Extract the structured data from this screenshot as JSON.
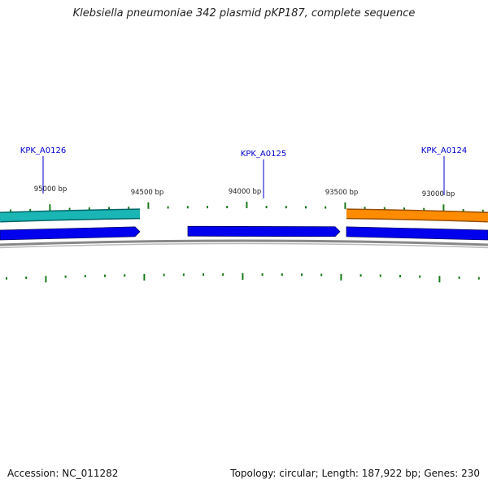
{
  "title": "Klebsiella pneumoniae 342 plasmid pKP187, complete sequence",
  "footer": {
    "accession": "Accession: NC_011282",
    "summary": "Topology: circular; Length: 187,922 bp; Genes: 230"
  },
  "genes": [
    {
      "label": "KPK_A0126",
      "color": "#1ab5b5",
      "border": "#006666",
      "track": "upper",
      "strand": "-"
    },
    {
      "label": "KPK_A0125",
      "color": "#0000ee",
      "border": "#000080",
      "track": "lower",
      "strand": "+"
    },
    {
      "label": "KPK_A0124",
      "color": "#ff8c00",
      "border": "#995000",
      "track": "upper",
      "strand": "-"
    }
  ],
  "lower_track": [
    {
      "strand": "-",
      "color": "#0000ee"
    },
    {
      "strand": "+",
      "color": "#0000ee"
    },
    {
      "strand": "+",
      "color": "#0000ee"
    }
  ],
  "scale_labels": [
    "95000 bp",
    "94500 bp",
    "94000 bp",
    "93500 bp",
    "93000 bp"
  ],
  "colors": {
    "label": "#0000cc",
    "tick": "#1a7a1a",
    "backbone": "#888888",
    "title": "#222222"
  }
}
